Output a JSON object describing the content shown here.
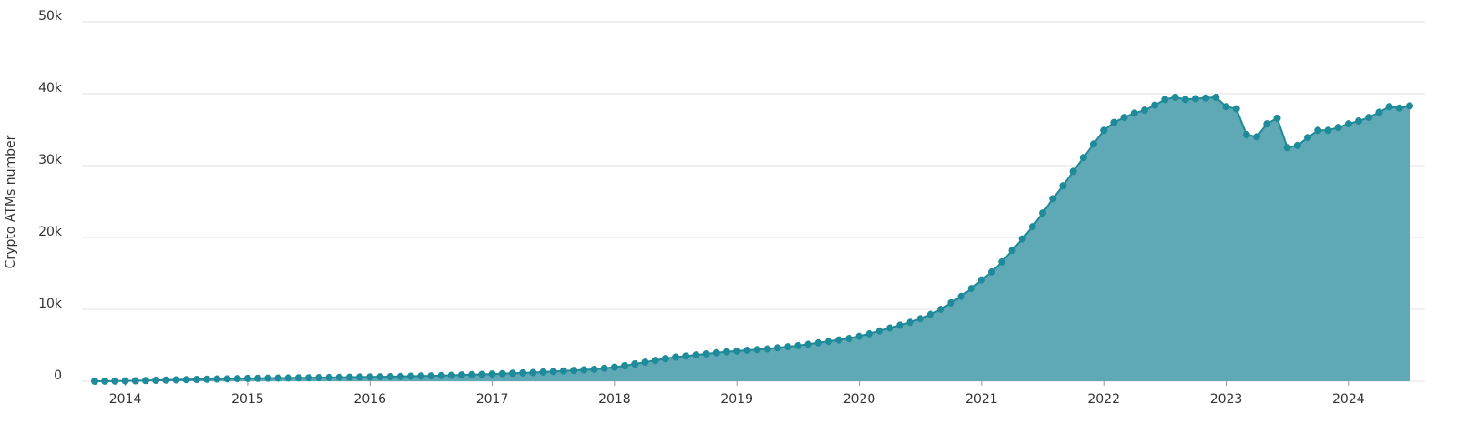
{
  "chart_data": {
    "type": "area",
    "y_label": "Crypto ATMs number",
    "categories": [
      null,
      null,
      null,
      "2014",
      null,
      null,
      null,
      null,
      null,
      null,
      null,
      null,
      null,
      null,
      null,
      "2015",
      null,
      null,
      null,
      null,
      null,
      null,
      null,
      null,
      null,
      null,
      null,
      "2016",
      null,
      null,
      null,
      null,
      null,
      null,
      null,
      null,
      null,
      null,
      null,
      "2017",
      null,
      null,
      null,
      null,
      null,
      null,
      null,
      null,
      null,
      null,
      null,
      "2018",
      null,
      null,
      null,
      null,
      null,
      null,
      null,
      null,
      null,
      null,
      null,
      "2019",
      null,
      null,
      null,
      null,
      null,
      null,
      null,
      null,
      null,
      null,
      null,
      "2020",
      null,
      null,
      null,
      null,
      null,
      null,
      null,
      null,
      null,
      null,
      null,
      "2021",
      null,
      null,
      null,
      null,
      null,
      null,
      null,
      null,
      null,
      null,
      null,
      "2022",
      null,
      null,
      null,
      null,
      null,
      null,
      null,
      null,
      null,
      null,
      null,
      "2023",
      null,
      null,
      null,
      null,
      null,
      null,
      null,
      null,
      null,
      null,
      null,
      "2024",
      null,
      null,
      null,
      null,
      null,
      null
    ],
    "series": [
      {
        "color": "#1f8a99",
        "fill": "#5ea9b5",
        "values": [
          0,
          10,
          20,
          40,
          60,
          90,
          120,
          160,
          190,
          220,
          250,
          280,
          310,
          340,
          370,
          390,
          410,
          430,
          450,
          460,
          470,
          480,
          500,
          520,
          540,
          560,
          580,
          600,
          620,
          640,
          660,
          690,
          720,
          750,
          790,
          830,
          870,
          910,
          950,
          1000,
          1050,
          1100,
          1150,
          1200,
          1280,
          1350,
          1430,
          1500,
          1580,
          1650,
          1800,
          1950,
          2150,
          2400,
          2650,
          2900,
          3150,
          3350,
          3500,
          3650,
          3800,
          3950,
          4100,
          4200,
          4300,
          4400,
          4500,
          4650,
          4800,
          4950,
          5150,
          5350,
          5550,
          5750,
          5950,
          6250,
          6600,
          7000,
          7400,
          7800,
          8200,
          8700,
          9300,
          10000,
          10900,
          11800,
          12900,
          14100,
          15200,
          16600,
          18200,
          19800,
          21500,
          23400,
          25400,
          27200,
          29200,
          31100,
          33000,
          34900,
          36000,
          36700,
          37300,
          37700,
          38400,
          39200,
          39500,
          39200,
          39300,
          39400,
          39500,
          38200,
          37900,
          34300,
          34000,
          35800,
          36600,
          32500,
          32800,
          33900,
          34900,
          34900,
          35300,
          35800,
          36200,
          36700,
          37400,
          38200,
          38000,
          38300
        ]
      }
    ],
    "ylim": [
      0,
      50000
    ],
    "yticks": [
      0,
      {
        "value": 10000,
        "label": "10k"
      },
      {
        "value": 20000,
        "label": "20k"
      },
      {
        "value": 30000,
        "label": "30k"
      },
      {
        "value": 40000,
        "label": "40k"
      },
      {
        "value": 50000,
        "label": "50k"
      }
    ],
    "grid": true
  }
}
